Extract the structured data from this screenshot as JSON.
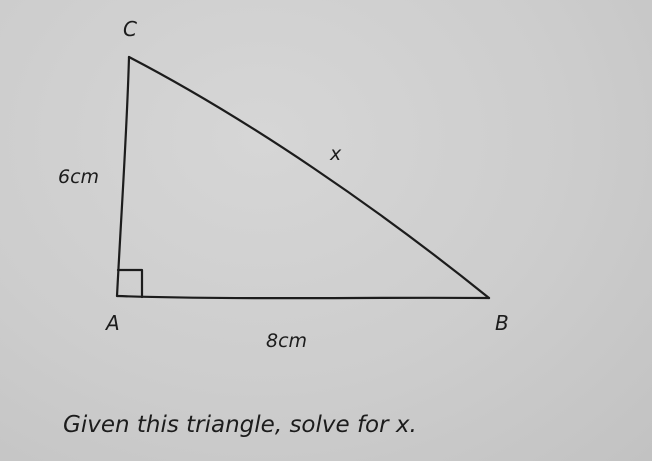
{
  "diagram": {
    "vertices": {
      "A": "A",
      "B": "B",
      "C": "C"
    },
    "sides": {
      "ac": "6cm",
      "ab": "8cm",
      "bc": "x"
    },
    "right_angle_at": "A",
    "question": "Given this triangle, solve for x.",
    "colors": {
      "ink": "#1c1c1c",
      "paper": "#cfcfcf"
    }
  }
}
